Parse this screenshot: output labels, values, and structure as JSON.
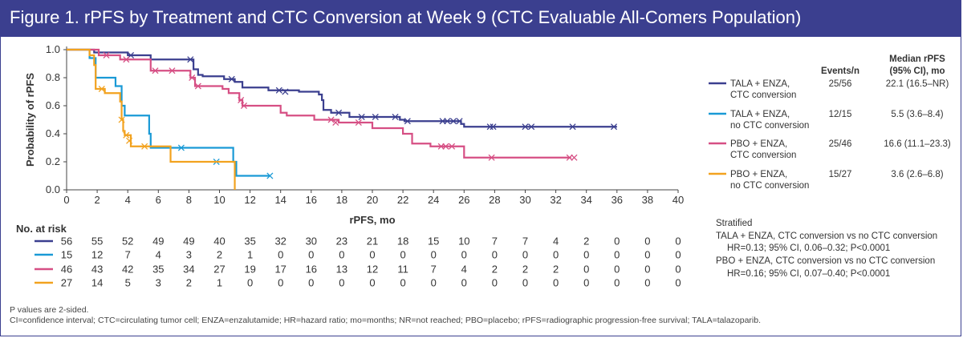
{
  "title": "Figure 1. rPFS by Treatment and CTC Conversion at Week 9 (CTC Evaluable All-Comers Population)",
  "chart_data": {
    "type": "line",
    "subtype": "kaplan-meier",
    "xlabel": "rPFS, mo",
    "ylabel": "Probability of rPFS",
    "xlim": [
      0,
      40
    ],
    "ylim": [
      0,
      1.0
    ],
    "xticks": [
      0,
      2,
      4,
      6,
      8,
      10,
      12,
      14,
      16,
      18,
      20,
      22,
      24,
      26,
      28,
      30,
      32,
      34,
      36,
      38,
      40
    ],
    "yticks": [
      "0.0",
      "0.2",
      "0.4",
      "0.6",
      "0.8",
      "1.0"
    ],
    "grid": false,
    "series": [
      {
        "name": "TALA + ENZA,\nCTC conversion",
        "color": "#3b3f8f",
        "steps": [
          [
            0,
            1.0
          ],
          [
            1.8,
            0.98
          ],
          [
            4,
            0.96
          ],
          [
            5.5,
            0.93
          ],
          [
            8.3,
            0.86
          ],
          [
            8.6,
            0.82
          ],
          [
            8.9,
            0.81
          ],
          [
            10.3,
            0.79
          ],
          [
            11,
            0.77
          ],
          [
            11.5,
            0.73
          ],
          [
            13.2,
            0.71
          ],
          [
            15.2,
            0.7
          ],
          [
            16.5,
            0.68
          ],
          [
            16.7,
            0.64
          ],
          [
            16.8,
            0.57
          ],
          [
            17.3,
            0.55
          ],
          [
            18.5,
            0.52
          ],
          [
            21.8,
            0.5
          ],
          [
            22.1,
            0.49
          ],
          [
            25.8,
            0.47
          ],
          [
            26,
            0.45
          ],
          [
            36,
            0.45
          ]
        ],
        "censor": [
          [
            4.2,
            0.96
          ],
          [
            8.1,
            0.93
          ],
          [
            10.8,
            0.79
          ],
          [
            13.9,
            0.71
          ],
          [
            14.3,
            0.7
          ],
          [
            17.8,
            0.55
          ],
          [
            19.3,
            0.52
          ],
          [
            20.2,
            0.52
          ],
          [
            21.5,
            0.52
          ],
          [
            22.3,
            0.49
          ],
          [
            24.6,
            0.49
          ],
          [
            24.9,
            0.49
          ],
          [
            25.3,
            0.49
          ],
          [
            25.7,
            0.49
          ],
          [
            27.7,
            0.45
          ],
          [
            27.9,
            0.45
          ],
          [
            30,
            0.45
          ],
          [
            30.4,
            0.45
          ],
          [
            33.1,
            0.45
          ],
          [
            35.8,
            0.45
          ]
        ]
      },
      {
        "name": "TALA + ENZA,\nno CTC conversion",
        "color": "#1a9ad6",
        "steps": [
          [
            0,
            1.0
          ],
          [
            1.5,
            0.94
          ],
          [
            1.9,
            0.8
          ],
          [
            3.2,
            0.74
          ],
          [
            3.6,
            0.6
          ],
          [
            3.8,
            0.53
          ],
          [
            5.4,
            0.4
          ],
          [
            5.5,
            0.3
          ],
          [
            10.9,
            0.2
          ],
          [
            11.1,
            0.1
          ],
          [
            13.3,
            0.1
          ]
        ],
        "censor": [
          [
            7.5,
            0.3
          ],
          [
            9.8,
            0.2
          ],
          [
            13.3,
            0.1
          ]
        ]
      },
      {
        "name": "PBO + ENZA,\nCTC conversion",
        "color": "#d64f84",
        "steps": [
          [
            0,
            1.0
          ],
          [
            2.1,
            0.96
          ],
          [
            3.5,
            0.93
          ],
          [
            5.5,
            0.85
          ],
          [
            8.1,
            0.8
          ],
          [
            8.4,
            0.74
          ],
          [
            10.2,
            0.72
          ],
          [
            10.6,
            0.69
          ],
          [
            11.3,
            0.64
          ],
          [
            11.5,
            0.6
          ],
          [
            14,
            0.55
          ],
          [
            14.4,
            0.53
          ],
          [
            16.2,
            0.5
          ],
          [
            17.8,
            0.48
          ],
          [
            20,
            0.44
          ],
          [
            22,
            0.4
          ],
          [
            22.6,
            0.33
          ],
          [
            23.8,
            0.31
          ],
          [
            26,
            0.23
          ],
          [
            33,
            0.23
          ]
        ],
        "censor": [
          [
            2.6,
            0.96
          ],
          [
            3.9,
            0.93
          ],
          [
            5.8,
            0.85
          ],
          [
            6.9,
            0.85
          ],
          [
            8.2,
            0.8
          ],
          [
            8.6,
            0.74
          ],
          [
            11.4,
            0.64
          ],
          [
            11.6,
            0.6
          ],
          [
            17.3,
            0.5
          ],
          [
            17.6,
            0.48
          ],
          [
            19.1,
            0.48
          ],
          [
            24.5,
            0.31
          ],
          [
            24.8,
            0.31
          ],
          [
            25.2,
            0.31
          ],
          [
            27.8,
            0.23
          ],
          [
            32.9,
            0.23
          ],
          [
            33.2,
            0.23
          ]
        ]
      },
      {
        "name": "PBO + ENZA,\nno CTC conversion",
        "color": "#f2a21f",
        "steps": [
          [
            0,
            1.0
          ],
          [
            1.5,
            0.96
          ],
          [
            1.8,
            0.89
          ],
          [
            1.9,
            0.72
          ],
          [
            2.5,
            0.69
          ],
          [
            3.5,
            0.63
          ],
          [
            3.6,
            0.5
          ],
          [
            3.7,
            0.42
          ],
          [
            3.8,
            0.39
          ],
          [
            4.2,
            0.31
          ],
          [
            6.8,
            0.2
          ],
          [
            11,
            0.2
          ],
          [
            11,
            0.0
          ]
        ],
        "censor": [
          [
            2.3,
            0.72
          ],
          [
            3.6,
            0.5
          ],
          [
            3.9,
            0.39
          ],
          [
            4.1,
            0.35
          ],
          [
            5.1,
            0.31
          ]
        ]
      }
    ],
    "legend": {
      "position": "right",
      "col_events": "Events/n",
      "col_median": "Median rPFS\n(95% CI), mo",
      "rows": [
        {
          "events": "25/56",
          "median": "22.1 (16.5–NR)"
        },
        {
          "events": "12/15",
          "median": "5.5 (3.6–8.4)"
        },
        {
          "events": "25/46",
          "median": "16.6 (11.1–23.3)"
        },
        {
          "events": "15/27",
          "median": "3.6 (2.6–6.8)"
        }
      ]
    },
    "risk_table": {
      "title": "No. at risk",
      "rows": [
        {
          "color": "#3b3f8f",
          "values": [
            56,
            55,
            52,
            49,
            49,
            40,
            35,
            32,
            30,
            23,
            21,
            18,
            15,
            10,
            7,
            7,
            4,
            2,
            0,
            0,
            0
          ]
        },
        {
          "color": "#1a9ad6",
          "values": [
            15,
            12,
            7,
            4,
            3,
            2,
            1,
            0,
            0,
            0,
            0,
            0,
            0,
            0,
            0,
            0,
            0,
            0,
            0,
            0,
            0
          ]
        },
        {
          "color": "#d64f84",
          "values": [
            46,
            43,
            42,
            35,
            34,
            27,
            19,
            17,
            16,
            13,
            12,
            11,
            7,
            4,
            2,
            2,
            2,
            0,
            0,
            0,
            0
          ]
        },
        {
          "color": "#f2a21f",
          "values": [
            27,
            14,
            5,
            3,
            2,
            1,
            0,
            0,
            0,
            0,
            0,
            0,
            0,
            0,
            0,
            0,
            0,
            0,
            0,
            0,
            0
          ]
        }
      ]
    },
    "stats": {
      "header": "Stratified",
      "lines": [
        "TALA + ENZA, CTC conversion vs no CTC conversion",
        "HR=0.13; 95% CI, 0.06–0.32; P<0.0001",
        "PBO + ENZA, CTC conversion vs no CTC conversion",
        "HR=0.16; 95% CI, 0.07–0.40; P<0.0001"
      ]
    }
  },
  "footer": {
    "line1": "P values are 2-sided.",
    "line2": "CI=confidence interval; CTC=circulating tumor cell; ENZA=enzalutamide; HR=hazard ratio; mo=months; NR=not reached; PBO=placebo; rPFS=radiographic progression-free survival; TALA=talazoparib."
  }
}
